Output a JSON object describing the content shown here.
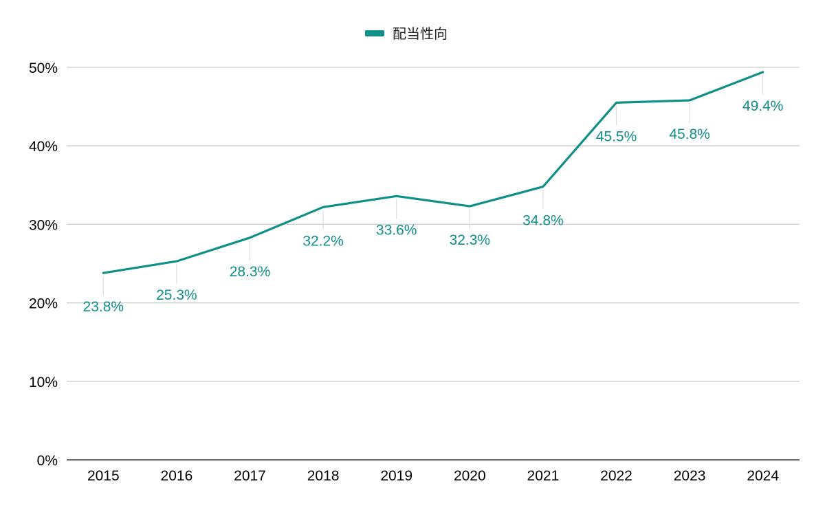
{
  "chart_data": {
    "type": "line",
    "categories": [
      "2015",
      "2016",
      "2017",
      "2018",
      "2019",
      "2020",
      "2021",
      "2022",
      "2023",
      "2024"
    ],
    "series": [
      {
        "name": "配当性向",
        "values": [
          23.8,
          25.3,
          28.3,
          32.2,
          33.6,
          32.3,
          34.8,
          45.5,
          45.8,
          49.4
        ],
        "data_labels": [
          "23.8%",
          "25.3%",
          "28.3%",
          "32.2%",
          "33.6%",
          "32.3%",
          "34.8%",
          "45.5%",
          "45.8%",
          "49.4%"
        ],
        "color": "#0e8f87"
      }
    ],
    "ylim": [
      0,
      50
    ],
    "y_ticks": [
      0,
      10,
      20,
      30,
      40,
      50
    ],
    "y_tick_labels": [
      "0%",
      "10%",
      "20%",
      "30%",
      "40%",
      "50%"
    ],
    "grid": true,
    "legend_position": "top-center",
    "colors": {
      "line": "#0e8f87",
      "grid": "#cccccc",
      "axis": "#333333",
      "leader": "#dddddd"
    }
  }
}
